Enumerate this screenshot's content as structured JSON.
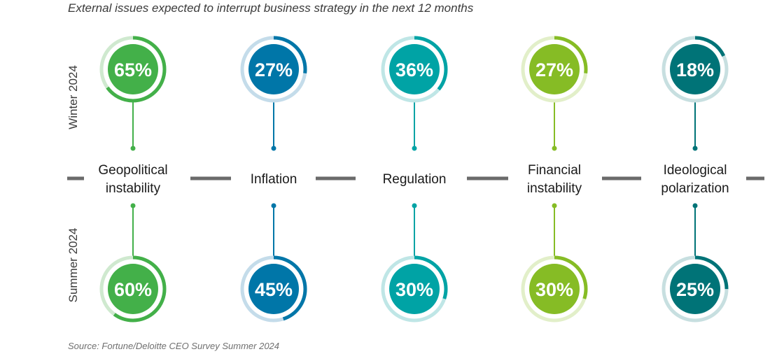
{
  "chart_data": {
    "type": "radial-progress",
    "title": "External issues expected to interrupt business strategy in the next 12 months",
    "source": "Source: Fortune/Deloitte CEO Survey Summer 2024",
    "unit": "%",
    "periods": [
      "Winter 2024",
      "Summer 2024"
    ],
    "categories": [
      {
        "label_lines": [
          "Geopolitical",
          "instability"
        ],
        "color": "#43b049",
        "track": "#cfe9cf",
        "values": [
          65,
          60
        ]
      },
      {
        "label_lines": [
          "Inflation"
        ],
        "color": "#0076a8",
        "track": "#c4dcea",
        "values": [
          27,
          45
        ]
      },
      {
        "label_lines": [
          "Regulation"
        ],
        "color": "#00a3a5",
        "track": "#bfe6e6",
        "values": [
          36,
          30
        ]
      },
      {
        "label_lines": [
          "Financial",
          "instability"
        ],
        "color": "#86bc25",
        "track": "#e2efc9",
        "values": [
          27,
          30
        ]
      },
      {
        "label_lines": [
          "Ideological",
          "polarization"
        ],
        "color": "#007377",
        "track": "#c7dfe0",
        "values": [
          18,
          25
        ]
      }
    ]
  }
}
